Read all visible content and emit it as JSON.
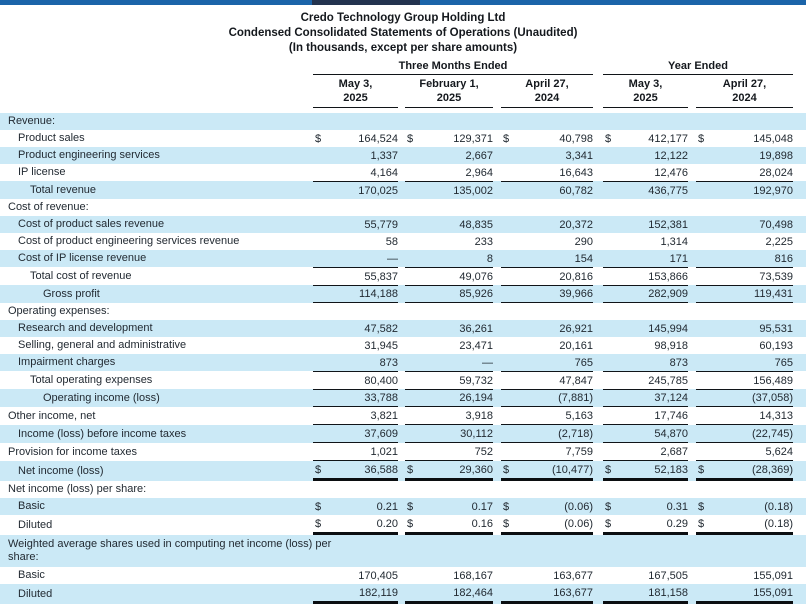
{
  "document": {
    "title": "Credo Technology Group Holding Ltd",
    "subtitle": "Condensed Consolidated Statements of Operations (Unaudited)",
    "note": "(In thousands, except per share amounts)",
    "dollar_sign": "$"
  },
  "table": {
    "column_groups": [
      {
        "label": "Three Months Ended"
      },
      {
        "label": "Year Ended"
      }
    ],
    "columns": [
      {
        "line1": "May 3,",
        "line2": "2025"
      },
      {
        "line1": "February 1,",
        "line2": "2025"
      },
      {
        "line1": "April 27,",
        "line2": "2024"
      },
      {
        "line1": "May 3,",
        "line2": "2025"
      },
      {
        "line1": "April 27,",
        "line2": "2024"
      }
    ],
    "rows": [
      {
        "label": "Revenue:",
        "indent": 0,
        "values": []
      },
      {
        "label": "Product sales",
        "indent": 1,
        "dollar": true,
        "values": [
          "164,524",
          "129,371",
          "40,798",
          "412,177",
          "145,048"
        ]
      },
      {
        "label": "Product engineering services",
        "indent": 1,
        "values": [
          "1,337",
          "2,667",
          "3,341",
          "12,122",
          "19,898"
        ]
      },
      {
        "label": "IP license",
        "indent": 1,
        "values": [
          "4,164",
          "2,964",
          "16,643",
          "12,476",
          "28,024"
        ]
      },
      {
        "label": "Total revenue",
        "indent": 2,
        "values": [
          "170,025",
          "135,002",
          "60,782",
          "436,775",
          "192,970"
        ],
        "border_top": true
      },
      {
        "label": "Cost of revenue:",
        "indent": 0,
        "values": []
      },
      {
        "label": "Cost of product sales revenue",
        "indent": 1,
        "values": [
          "55,779",
          "48,835",
          "20,372",
          "152,381",
          "70,498"
        ]
      },
      {
        "label": "Cost of product engineering services revenue",
        "indent": 1,
        "values": [
          "58",
          "233",
          "290",
          "1,314",
          "2,225"
        ]
      },
      {
        "label": "Cost of IP license revenue",
        "indent": 1,
        "values": [
          "—",
          "8",
          "154",
          "171",
          "816"
        ]
      },
      {
        "label": "Total cost of revenue",
        "indent": 2,
        "values": [
          "55,837",
          "49,076",
          "20,816",
          "153,866",
          "73,539"
        ],
        "border_top": true
      },
      {
        "label": "Gross profit",
        "indent": 3,
        "values": [
          "114,188",
          "85,926",
          "39,966",
          "282,909",
          "119,431"
        ],
        "border_top": true,
        "border_bottom": "single"
      },
      {
        "label": "Operating expenses:",
        "indent": 0,
        "values": []
      },
      {
        "label": "Research and development",
        "indent": 1,
        "values": [
          "47,582",
          "36,261",
          "26,921",
          "145,994",
          "95,531"
        ]
      },
      {
        "label": "Selling, general and administrative",
        "indent": 1,
        "values": [
          "31,945",
          "23,471",
          "20,161",
          "98,918",
          "60,193"
        ]
      },
      {
        "label": "Impairment charges",
        "indent": 1,
        "values": [
          "873",
          "—",
          "765",
          "873",
          "765"
        ]
      },
      {
        "label": "Total operating expenses",
        "indent": 2,
        "values": [
          "80,400",
          "59,732",
          "47,847",
          "245,785",
          "156,489"
        ],
        "border_top": true
      },
      {
        "label": "Operating income (loss)",
        "indent": 3,
        "values": [
          "33,788",
          "26,194",
          "(7,881)",
          "37,124",
          "(37,058)"
        ],
        "border_top": true,
        "border_bottom": "single"
      },
      {
        "label": "Other income, net",
        "indent": 0,
        "values": [
          "3,821",
          "3,918",
          "5,163",
          "17,746",
          "14,313"
        ],
        "border_bottom": "single"
      },
      {
        "label": "Income (loss) before income taxes",
        "indent": 1,
        "values": [
          "37,609",
          "30,112",
          "(2,718)",
          "54,870",
          "(22,745)"
        ],
        "border_bottom": "single"
      },
      {
        "label": "Provision for income taxes",
        "indent": 0,
        "values": [
          "1,021",
          "752",
          "7,759",
          "2,687",
          "5,624"
        ],
        "border_bottom": "single"
      },
      {
        "label": "Net income (loss)",
        "indent": 1,
        "dollar": true,
        "values": [
          "36,588",
          "29,360",
          "(10,477)",
          "52,183",
          "(28,369)"
        ],
        "border_bottom": "thick"
      },
      {
        "label": "Net income (loss) per share:",
        "indent": 0,
        "values": []
      },
      {
        "label": "Basic",
        "indent": 1,
        "dollar": true,
        "values": [
          "0.21",
          "0.17",
          "(0.06)",
          "0.31",
          "(0.18)"
        ]
      },
      {
        "label": "Diluted",
        "indent": 1,
        "dollar": true,
        "values": [
          "0.20",
          "0.16",
          "(0.06)",
          "0.29",
          "(0.18)"
        ],
        "border_bottom": "thick"
      },
      {
        "label": "Weighted average shares used in computing net income (loss) per\nshare:",
        "indent": 0,
        "values": [],
        "two_line": true
      },
      {
        "label": "Basic",
        "indent": 1,
        "values": [
          "170,405",
          "168,167",
          "163,677",
          "167,505",
          "155,091"
        ]
      },
      {
        "label": "Diluted",
        "indent": 1,
        "values": [
          "182,119",
          "182,464",
          "163,677",
          "181,158",
          "155,091"
        ],
        "border_bottom": "thick"
      }
    ]
  }
}
